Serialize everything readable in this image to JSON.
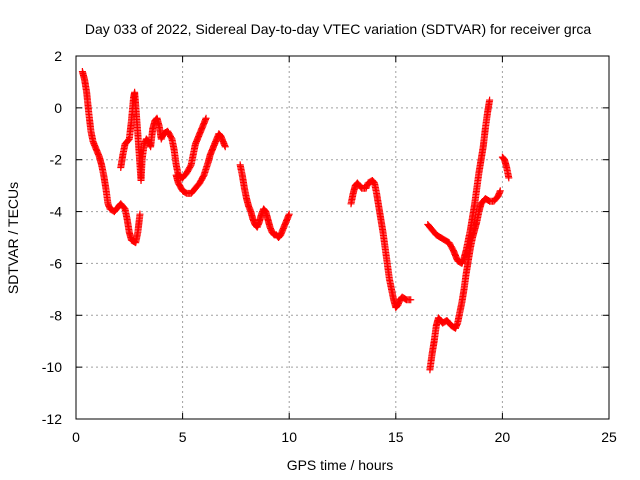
{
  "chart_data": {
    "type": "scatter",
    "title": "Day 033 of 2022, Sidereal Day-to-day VTEC variation (SDTVAR) for receiver grca",
    "xlabel": "GPS time / hours",
    "ylabel": "SDTVAR / TECUs",
    "xlim": [
      0,
      25
    ],
    "ylim": [
      -12,
      2
    ],
    "xticks": [
      0,
      5,
      10,
      15,
      20,
      25
    ],
    "yticks": [
      -12,
      -10,
      -8,
      -6,
      -4,
      -2,
      0,
      2
    ],
    "grid": true,
    "marker": "plus",
    "color": "#ff0000",
    "segments": [
      [
        [
          0.3,
          1.4
        ],
        [
          0.4,
          1.1
        ],
        [
          0.5,
          0.6
        ],
        [
          0.6,
          -0.2
        ],
        [
          0.7,
          -0.9
        ],
        [
          0.8,
          -1.3
        ],
        [
          0.9,
          -1.5
        ],
        [
          1.0,
          -1.7
        ],
        [
          1.1,
          -1.9
        ],
        [
          1.2,
          -2.2
        ],
        [
          1.3,
          -2.6
        ],
        [
          1.4,
          -3.1
        ],
        [
          1.5,
          -3.7
        ],
        [
          1.6,
          -3.9
        ],
        [
          1.8,
          -4.0
        ],
        [
          2.0,
          -3.8
        ],
        [
          2.1,
          -3.7
        ],
        [
          2.3,
          -3.9
        ],
        [
          2.4,
          -4.3
        ],
        [
          2.5,
          -4.8
        ],
        [
          2.6,
          -5.1
        ],
        [
          2.8,
          -5.2
        ],
        [
          2.9,
          -4.8
        ],
        [
          3.0,
          -4.1
        ]
      ],
      [
        [
          2.1,
          -2.3
        ],
        [
          2.2,
          -1.8
        ],
        [
          2.3,
          -1.4
        ],
        [
          2.4,
          -1.3
        ],
        [
          2.5,
          -1.2
        ],
        [
          2.6,
          -0.5
        ],
        [
          2.7,
          0.4
        ],
        [
          2.75,
          0.6
        ],
        [
          2.8,
          0.1
        ],
        [
          2.9,
          -1.0
        ],
        [
          3.0,
          -2.2
        ],
        [
          3.05,
          -2.8
        ],
        [
          3.1,
          -2.0
        ],
        [
          3.2,
          -1.4
        ],
        [
          3.3,
          -1.2
        ],
        [
          3.4,
          -1.3
        ],
        [
          3.5,
          -1.5
        ],
        [
          3.6,
          -0.8
        ],
        [
          3.7,
          -0.5
        ],
        [
          3.8,
          -0.4
        ],
        [
          3.9,
          -0.7
        ],
        [
          4.0,
          -1.2
        ],
        [
          4.1,
          -1.0
        ],
        [
          4.3,
          -0.9
        ],
        [
          4.5,
          -1.2
        ],
        [
          4.6,
          -1.6
        ],
        [
          4.7,
          -2.2
        ],
        [
          4.8,
          -2.6
        ],
        [
          5.0,
          -2.7
        ],
        [
          5.2,
          -2.5
        ],
        [
          5.4,
          -2.2
        ],
        [
          5.5,
          -1.8
        ],
        [
          5.6,
          -1.4
        ],
        [
          5.8,
          -1.0
        ],
        [
          5.9,
          -0.8
        ],
        [
          6.0,
          -0.6
        ],
        [
          6.1,
          -0.4
        ]
      ],
      [
        [
          4.7,
          -2.6
        ],
        [
          4.8,
          -2.9
        ],
        [
          5.0,
          -3.2
        ],
        [
          5.2,
          -3.3
        ],
        [
          5.4,
          -3.3
        ],
        [
          5.6,
          -3.1
        ],
        [
          5.8,
          -2.9
        ],
        [
          6.0,
          -2.6
        ],
        [
          6.2,
          -2.1
        ],
        [
          6.3,
          -1.8
        ],
        [
          6.4,
          -1.6
        ],
        [
          6.5,
          -1.4
        ],
        [
          6.6,
          -1.2
        ],
        [
          6.7,
          -1.0
        ],
        [
          6.8,
          -1.1
        ],
        [
          6.9,
          -1.3
        ],
        [
          7.0,
          -1.5
        ]
      ],
      [
        [
          7.7,
          -2.2
        ],
        [
          7.8,
          -2.6
        ],
        [
          7.9,
          -3.1
        ],
        [
          8.0,
          -3.5
        ],
        [
          8.1,
          -3.8
        ],
        [
          8.2,
          -4.0
        ],
        [
          8.3,
          -4.3
        ],
        [
          8.4,
          -4.5
        ],
        [
          8.5,
          -4.6
        ],
        [
          8.6,
          -4.4
        ],
        [
          8.7,
          -4.1
        ],
        [
          8.8,
          -3.9
        ],
        [
          8.9,
          -4.0
        ],
        [
          9.0,
          -4.3
        ],
        [
          9.1,
          -4.6
        ],
        [
          9.2,
          -4.8
        ],
        [
          9.3,
          -4.9
        ],
        [
          9.4,
          -4.9
        ],
        [
          9.5,
          -5.0
        ],
        [
          9.6,
          -4.9
        ],
        [
          9.7,
          -4.7
        ],
        [
          9.8,
          -4.5
        ],
        [
          9.9,
          -4.3
        ],
        [
          10.0,
          -4.1
        ]
      ],
      [
        [
          12.9,
          -3.7
        ],
        [
          13.0,
          -3.3
        ],
        [
          13.1,
          -3.0
        ],
        [
          13.2,
          -2.9
        ],
        [
          13.4,
          -3.1
        ],
        [
          13.6,
          -3.1
        ],
        [
          13.7,
          -2.9
        ],
        [
          13.9,
          -2.8
        ],
        [
          14.0,
          -2.9
        ],
        [
          14.1,
          -3.3
        ],
        [
          14.2,
          -3.8
        ],
        [
          14.3,
          -4.3
        ],
        [
          14.4,
          -4.8
        ],
        [
          14.5,
          -5.4
        ],
        [
          14.6,
          -6.0
        ],
        [
          14.7,
          -6.6
        ],
        [
          14.8,
          -7.0
        ],
        [
          14.9,
          -7.4
        ],
        [
          15.0,
          -7.7
        ],
        [
          15.1,
          -7.6
        ],
        [
          15.2,
          -7.4
        ],
        [
          15.3,
          -7.3
        ],
        [
          15.5,
          -7.4
        ],
        [
          15.7,
          -7.4
        ]
      ],
      [
        [
          16.6,
          -10.1
        ],
        [
          16.7,
          -9.5
        ],
        [
          16.8,
          -9.0
        ],
        [
          16.9,
          -8.4
        ],
        [
          17.0,
          -8.1
        ],
        [
          17.1,
          -8.2
        ],
        [
          17.2,
          -8.3
        ],
        [
          17.4,
          -8.2
        ],
        [
          17.6,
          -8.4
        ],
        [
          17.8,
          -8.5
        ],
        [
          17.9,
          -8.3
        ],
        [
          18.0,
          -7.9
        ],
        [
          18.1,
          -7.5
        ],
        [
          18.2,
          -7.0
        ],
        [
          18.3,
          -6.4
        ],
        [
          18.4,
          -5.9
        ],
        [
          18.5,
          -5.4
        ],
        [
          18.6,
          -5.0
        ],
        [
          18.7,
          -4.7
        ],
        [
          18.8,
          -4.4
        ],
        [
          18.9,
          -4.0
        ],
        [
          19.0,
          -3.7
        ],
        [
          19.2,
          -3.5
        ],
        [
          19.4,
          -3.6
        ],
        [
          19.6,
          -3.6
        ],
        [
          19.8,
          -3.4
        ],
        [
          19.9,
          -3.2
        ]
      ],
      [
        [
          16.5,
          -4.5
        ],
        [
          16.7,
          -4.7
        ],
        [
          16.9,
          -4.9
        ],
        [
          17.1,
          -5.0
        ],
        [
          17.3,
          -5.1
        ],
        [
          17.5,
          -5.2
        ],
        [
          17.7,
          -5.5
        ],
        [
          17.9,
          -5.9
        ],
        [
          18.1,
          -6.0
        ],
        [
          18.2,
          -5.8
        ],
        [
          18.3,
          -5.5
        ],
        [
          18.4,
          -5.1
        ],
        [
          18.5,
          -4.7
        ],
        [
          18.6,
          -4.2
        ],
        [
          18.7,
          -3.7
        ],
        [
          18.8,
          -3.1
        ],
        [
          18.9,
          -2.5
        ],
        [
          19.0,
          -2.0
        ],
        [
          19.1,
          -1.5
        ],
        [
          19.2,
          -0.8
        ],
        [
          19.3,
          -0.2
        ],
        [
          19.4,
          0.3
        ]
      ],
      [
        [
          20.0,
          -1.9
        ],
        [
          20.1,
          -2.0
        ],
        [
          20.2,
          -2.3
        ],
        [
          20.3,
          -2.7
        ]
      ]
    ]
  }
}
